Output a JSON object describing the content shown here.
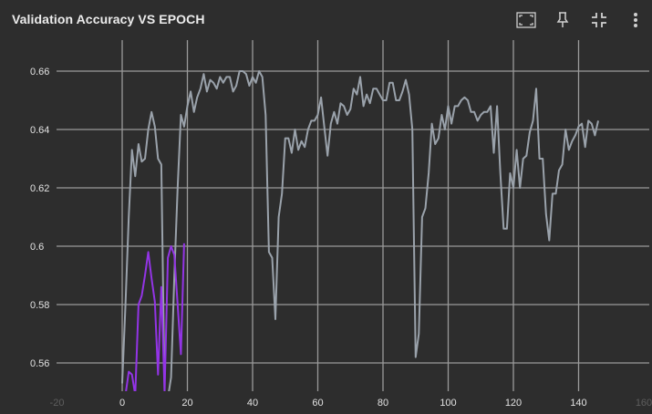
{
  "header": {
    "title": "Validation Accuracy VS EPOCH"
  },
  "toolbar": {
    "icons": [
      "fit-domain-icon",
      "pin-icon",
      "collapse-icon",
      "more-vert-icon"
    ]
  },
  "colors": {
    "background": "#2d2d2d",
    "grid": "#9a9a9a",
    "series_gray": "#9aa2ab",
    "series_purple": "#9334e6"
  },
  "chart_data": {
    "type": "line",
    "title": "Validation Accuracy VS EPOCH",
    "xlabel": "",
    "ylabel": "",
    "xlim": [
      -20,
      150
    ],
    "ylim": [
      0.55,
      0.67
    ],
    "xticks": [
      0,
      20,
      40,
      60,
      80,
      100,
      120,
      140
    ],
    "xticks_faint": [
      -20,
      160
    ],
    "x_tick_labels": [
      "0",
      "20",
      "40",
      "60",
      "80",
      "100",
      "120",
      "140"
    ],
    "x_tick_labels_faint": [
      "-20",
      "160"
    ],
    "yticks": [
      0.56,
      0.58,
      0.6,
      0.62,
      0.64,
      0.66
    ],
    "y_tick_labels": [
      "0.56",
      "0.58",
      "0.6",
      "0.62",
      "0.64",
      "0.66"
    ],
    "grid": true,
    "series": [
      {
        "color": "#9aa2ab",
        "points": [
          [
            0,
            0.553
          ],
          [
            1,
            0.58
          ],
          [
            2,
            0.61
          ],
          [
            3,
            0.633
          ],
          [
            4,
            0.624
          ],
          [
            5,
            0.635
          ],
          [
            6,
            0.629
          ],
          [
            7,
            0.63
          ],
          [
            8,
            0.64
          ],
          [
            9,
            0.646
          ],
          [
            10,
            0.641
          ],
          [
            11,
            0.63
          ],
          [
            12,
            0.628
          ],
          [
            13,
            0.55
          ],
          [
            14,
            0.548
          ],
          [
            15,
            0.555
          ],
          [
            16,
            0.59
          ],
          [
            17,
            0.62
          ],
          [
            18,
            0.645
          ],
          [
            19,
            0.641
          ],
          [
            20,
            0.648
          ],
          [
            21,
            0.653
          ],
          [
            22,
            0.646
          ],
          [
            23,
            0.651
          ],
          [
            24,
            0.654
          ],
          [
            25,
            0.659
          ],
          [
            26,
            0.653
          ],
          [
            27,
            0.657
          ],
          [
            28,
            0.656
          ],
          [
            29,
            0.654
          ],
          [
            30,
            0.658
          ],
          [
            31,
            0.656
          ],
          [
            32,
            0.658
          ],
          [
            33,
            0.658
          ],
          [
            34,
            0.653
          ],
          [
            35,
            0.655
          ],
          [
            36,
            0.66
          ],
          [
            37,
            0.66
          ],
          [
            38,
            0.659
          ],
          [
            39,
            0.655
          ],
          [
            40,
            0.658
          ],
          [
            41,
            0.656
          ],
          [
            42,
            0.66
          ],
          [
            43,
            0.658
          ],
          [
            44,
            0.645
          ],
          [
            45,
            0.598
          ],
          [
            46,
            0.596
          ],
          [
            47,
            0.575
          ],
          [
            48,
            0.61
          ],
          [
            49,
            0.618
          ],
          [
            50,
            0.637
          ],
          [
            51,
            0.637
          ],
          [
            52,
            0.632
          ],
          [
            53,
            0.64
          ],
          [
            54,
            0.633
          ],
          [
            55,
            0.636
          ],
          [
            56,
            0.634
          ],
          [
            57,
            0.64
          ],
          [
            58,
            0.643
          ],
          [
            59,
            0.643
          ],
          [
            60,
            0.645
          ],
          [
            61,
            0.651
          ],
          [
            62,
            0.641
          ],
          [
            63,
            0.631
          ],
          [
            64,
            0.642
          ],
          [
            65,
            0.646
          ],
          [
            66,
            0.642
          ],
          [
            67,
            0.649
          ],
          [
            68,
            0.648
          ],
          [
            69,
            0.645
          ],
          [
            70,
            0.647
          ],
          [
            71,
            0.654
          ],
          [
            72,
            0.652
          ],
          [
            73,
            0.658
          ],
          [
            74,
            0.648
          ],
          [
            75,
            0.652
          ],
          [
            76,
            0.649
          ],
          [
            77,
            0.654
          ],
          [
            78,
            0.654
          ],
          [
            79,
            0.652
          ],
          [
            80,
            0.65
          ],
          [
            81,
            0.65
          ],
          [
            82,
            0.656
          ],
          [
            83,
            0.656
          ],
          [
            84,
            0.65
          ],
          [
            85,
            0.65
          ],
          [
            86,
            0.653
          ],
          [
            87,
            0.657
          ],
          [
            88,
            0.652
          ],
          [
            89,
            0.64
          ],
          [
            90,
            0.562
          ],
          [
            91,
            0.57
          ],
          [
            92,
            0.61
          ],
          [
            93,
            0.613
          ],
          [
            94,
            0.625
          ],
          [
            95,
            0.642
          ],
          [
            96,
            0.635
          ],
          [
            97,
            0.637
          ],
          [
            98,
            0.645
          ],
          [
            99,
            0.64
          ],
          [
            100,
            0.648
          ],
          [
            101,
            0.642
          ],
          [
            102,
            0.648
          ],
          [
            103,
            0.648
          ],
          [
            104,
            0.65
          ],
          [
            105,
            0.651
          ],
          [
            106,
            0.65
          ],
          [
            107,
            0.646
          ],
          [
            108,
            0.646
          ],
          [
            109,
            0.643
          ],
          [
            110,
            0.645
          ],
          [
            111,
            0.646
          ],
          [
            112,
            0.646
          ],
          [
            113,
            0.648
          ],
          [
            114,
            0.632
          ],
          [
            115,
            0.648
          ],
          [
            116,
            0.625
          ],
          [
            117,
            0.606
          ],
          [
            118,
            0.606
          ],
          [
            119,
            0.625
          ],
          [
            120,
            0.62
          ],
          [
            121,
            0.633
          ],
          [
            122,
            0.62
          ],
          [
            123,
            0.63
          ],
          [
            124,
            0.631
          ],
          [
            125,
            0.639
          ],
          [
            126,
            0.643
          ],
          [
            127,
            0.654
          ],
          [
            128,
            0.63
          ],
          [
            129,
            0.63
          ],
          [
            130,
            0.611
          ],
          [
            131,
            0.602
          ],
          [
            132,
            0.618
          ],
          [
            133,
            0.618
          ],
          [
            134,
            0.626
          ],
          [
            135,
            0.628
          ],
          [
            136,
            0.64
          ],
          [
            137,
            0.633
          ],
          [
            138,
            0.636
          ],
          [
            139,
            0.638
          ],
          [
            140,
            0.641
          ],
          [
            141,
            0.642
          ],
          [
            142,
            0.634
          ],
          [
            143,
            0.643
          ],
          [
            144,
            0.642
          ],
          [
            145,
            0.638
          ],
          [
            146,
            0.643
          ]
        ]
      },
      {
        "color": "#9334e6",
        "points": [
          [
            0,
            0.546
          ],
          [
            1,
            0.549
          ],
          [
            2,
            0.557
          ],
          [
            3,
            0.556
          ],
          [
            4,
            0.549
          ],
          [
            5,
            0.58
          ],
          [
            6,
            0.583
          ],
          [
            7,
            0.59
          ],
          [
            8,
            0.598
          ],
          [
            9,
            0.589
          ],
          [
            10,
            0.581
          ],
          [
            11,
            0.556
          ],
          [
            12,
            0.586
          ],
          [
            13,
            0.55
          ],
          [
            14,
            0.596
          ],
          [
            15,
            0.6
          ],
          [
            16,
            0.597
          ],
          [
            17,
            0.58
          ],
          [
            18,
            0.563
          ],
          [
            19,
            0.601
          ]
        ]
      }
    ]
  }
}
